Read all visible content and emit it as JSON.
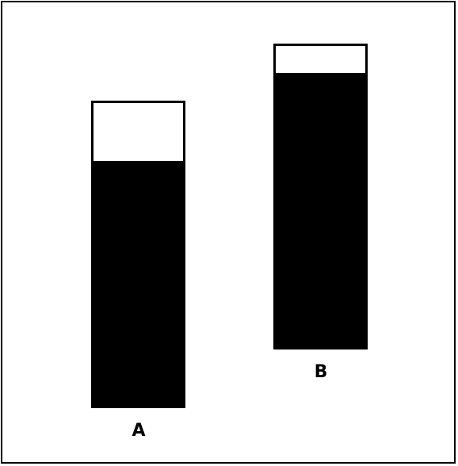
{
  "columns": [
    {
      "label": "A",
      "fill_fraction": 0.81,
      "fill_color": "#000000",
      "empty_color": "#ffffff"
    },
    {
      "label": "B",
      "fill_fraction": 0.91,
      "fill_color": "#000000",
      "empty_color": "#ffffff"
    }
  ]
}
